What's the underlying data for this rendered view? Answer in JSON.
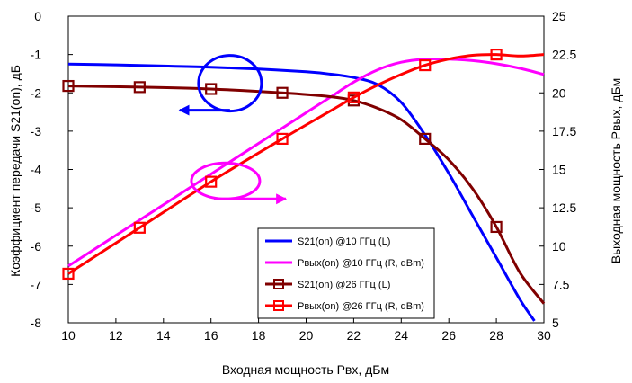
{
  "chart_data": {
    "type": "line",
    "title": "",
    "xlabel": "Входная мощность Pвх, дБм",
    "ylabel_left": "Коэффициент передачи S21(on), дБ",
    "ylabel_right": "Выходная мощность Pвых, дБм",
    "xlim": [
      10,
      30
    ],
    "ylim_left": [
      -8,
      0
    ],
    "ylim_right": [
      5,
      25
    ],
    "x_ticks": [
      10,
      12,
      14,
      16,
      18,
      20,
      22,
      24,
      26,
      28,
      30
    ],
    "x_tick_labels": [
      "10",
      "12",
      "14",
      "16",
      "18",
      "20",
      "22",
      "24",
      "26",
      "28",
      "30"
    ],
    "y_left_ticks": [
      0,
      -1,
      -2,
      -3,
      -4,
      -5,
      -6,
      -7,
      -8
    ],
    "y_left_tick_labels": [
      "0",
      "-1",
      "-2",
      "-3",
      "-4",
      "-5",
      "-6",
      "-7",
      "-8"
    ],
    "y_right_ticks": [
      25,
      22.5,
      20,
      17.5,
      15,
      12.5,
      10,
      7.5,
      5
    ],
    "y_right_tick_labels": [
      "25",
      "22.5",
      "20",
      "17.5",
      "15",
      "12.5",
      "10",
      "7.5",
      "5"
    ],
    "grid": false,
    "legend_position": "bottom-center",
    "series": [
      {
        "name": "S21(on) @10 ГГц (L)",
        "axis": "left",
        "color": "#0000ff",
        "marker": "none",
        "x": [
          10,
          12,
          14,
          16,
          18,
          20,
          21,
          22,
          23,
          24,
          25,
          26,
          27,
          28,
          29,
          29.6
        ],
        "y": [
          -1.25,
          -1.27,
          -1.3,
          -1.33,
          -1.38,
          -1.45,
          -1.51,
          -1.6,
          -1.78,
          -2.25,
          -3.1,
          -4.1,
          -5.2,
          -6.3,
          -7.4,
          -7.95
        ]
      },
      {
        "name": "Pвых(on) @10 ГГц (R, dBm)",
        "axis": "right",
        "color": "#ff00ff",
        "marker": "none",
        "x": [
          10,
          12,
          14,
          16,
          18,
          20,
          21,
          22,
          23,
          24,
          25,
          26,
          27,
          28,
          29,
          30
        ],
        "y": [
          8.7,
          10.7,
          12.7,
          14.7,
          16.7,
          18.7,
          19.7,
          20.7,
          21.5,
          22.0,
          22.2,
          22.2,
          22.1,
          21.9,
          21.6,
          21.2
        ]
      },
      {
        "name": "S21(on) @26 ГГц (L)",
        "axis": "left",
        "color": "#800000",
        "marker": "square",
        "marker_x": [
          10,
          13,
          16,
          19,
          22,
          25,
          28
        ],
        "x": [
          10,
          13,
          16,
          19,
          21,
          22,
          23,
          24,
          25,
          26,
          27,
          28,
          29,
          30
        ],
        "y": [
          -1.82,
          -1.85,
          -1.9,
          -2.0,
          -2.1,
          -2.2,
          -2.4,
          -2.7,
          -3.2,
          -3.75,
          -4.5,
          -5.5,
          -6.7,
          -7.5
        ]
      },
      {
        "name": "Pвых(on) @26 ГГц (R, dBm)",
        "axis": "right",
        "color": "#ff0000",
        "marker": "square",
        "marker_x": [
          10,
          13,
          16,
          19,
          22,
          25,
          28
        ],
        "x": [
          10,
          13,
          16,
          19,
          21,
          22,
          23,
          24,
          25,
          26,
          27,
          28,
          29,
          30
        ],
        "y": [
          8.2,
          11.2,
          14.2,
          17.0,
          18.8,
          19.7,
          20.5,
          21.2,
          21.8,
          22.2,
          22.45,
          22.5,
          22.4,
          22.5
        ]
      }
    ],
    "annotations": [
      {
        "type": "ellipse-with-arrow",
        "color": "#0000ff",
        "points_to": "left-axis",
        "center": [
          16.8,
          -1.75
        ]
      },
      {
        "type": "ellipse-with-arrow",
        "color": "#ff00ff",
        "points_to": "right-axis",
        "center": [
          16.5,
          -4.3
        ]
      }
    ]
  }
}
